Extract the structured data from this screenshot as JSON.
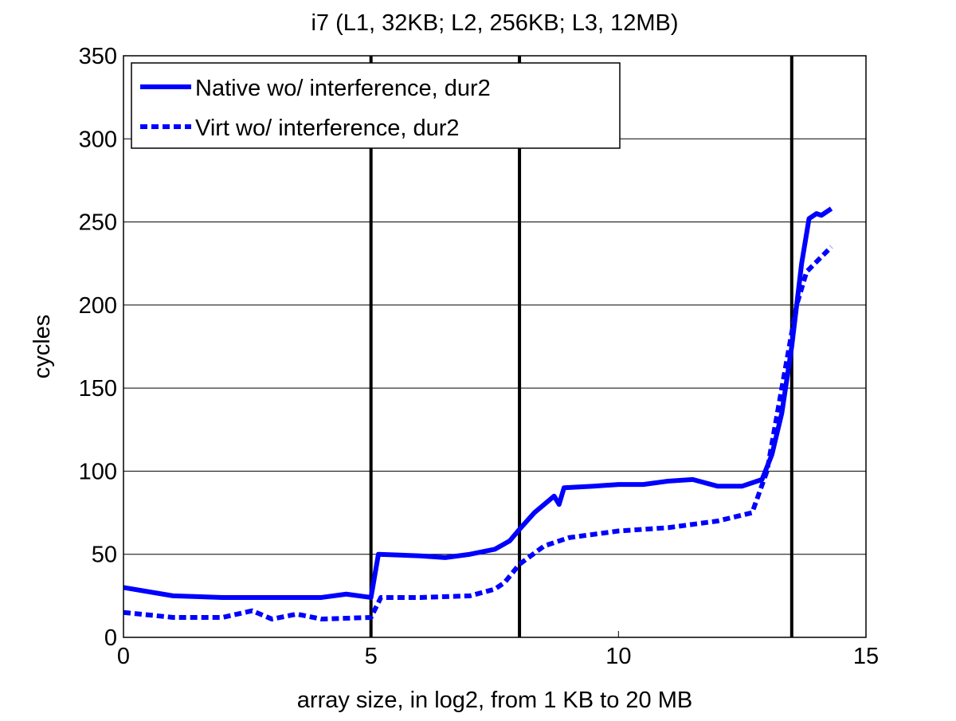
{
  "chart_data": {
    "type": "line",
    "title": "i7 (L1, 32KB; L2, 256KB; L3, 12MB)",
    "xlabel": "array size, in log2, from 1 KB to 20 MB",
    "ylabel": "cycles",
    "xlim": [
      0,
      15
    ],
    "ylim": [
      0,
      350
    ],
    "xticks": [
      0,
      5,
      10,
      15
    ],
    "yticks": [
      0,
      50,
      100,
      150,
      200,
      250,
      300,
      350
    ],
    "grid": "horizontal",
    "legend_position": "top-left",
    "vertical_markers": [
      5,
      8,
      13.5
    ],
    "series": [
      {
        "name": "Native wo/ interference, dur2",
        "style": "solid",
        "color": "#0000ff",
        "x": [
          0,
          1,
          2,
          3,
          4,
          4.5,
          5,
          5.15,
          6,
          6.5,
          7,
          7.5,
          7.8,
          8,
          8.3,
          8.7,
          8.8,
          8.9,
          9.5,
          10,
          10.5,
          11,
          11.5,
          12,
          12.5,
          12.9,
          13.1,
          13.3,
          13.5,
          13.7,
          13.85,
          14,
          14.1,
          14.3
        ],
        "y": [
          30,
          25,
          24,
          24,
          24,
          26,
          24,
          50,
          49,
          48,
          50,
          53,
          58,
          65,
          75,
          85,
          80,
          90,
          91,
          92,
          92,
          94,
          95,
          91,
          91,
          95,
          110,
          135,
          175,
          225,
          252,
          255,
          254,
          258
        ]
      },
      {
        "name": "Virt wo/ interference, dur2",
        "style": "dashed",
        "color": "#0000ff",
        "x": [
          0,
          1,
          2,
          2.6,
          3,
          3.5,
          4,
          5,
          5.2,
          6,
          7,
          7.5,
          7.7,
          8,
          8.5,
          9,
          10,
          11,
          12,
          12.7,
          13,
          13.3,
          13.6,
          13.8,
          14.3
        ],
        "y": [
          15,
          12,
          12,
          16,
          11,
          14,
          11,
          12,
          24,
          24,
          25,
          29,
          33,
          44,
          55,
          60,
          64,
          66,
          70,
          75,
          100,
          150,
          200,
          220,
          235
        ]
      }
    ]
  }
}
